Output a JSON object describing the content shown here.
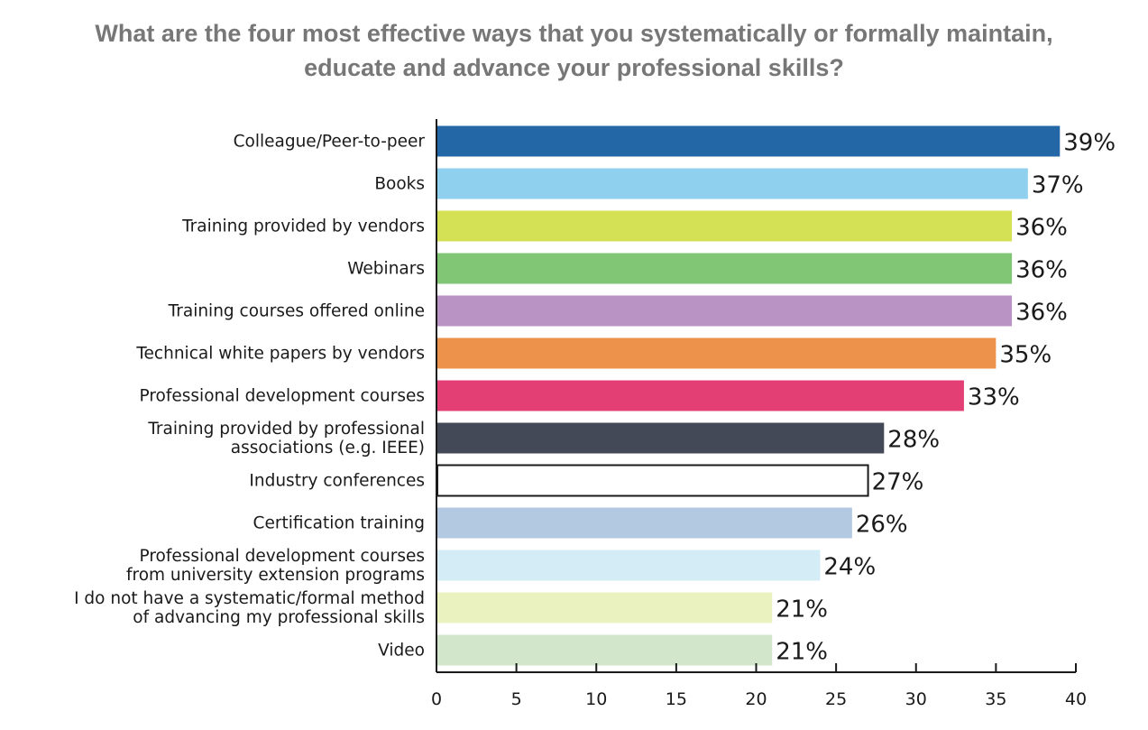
{
  "chart_data": {
    "type": "bar",
    "orientation": "horizontal",
    "title_lines": [
      "What are the four most effective ways that you systematically or formally maintain,",
      "educate and advance your professional skills?"
    ],
    "xlim": [
      0,
      40
    ],
    "xticks": [
      0,
      5,
      10,
      15,
      20,
      25,
      30,
      35,
      40
    ],
    "grid": false,
    "value_suffix": "%",
    "bars": [
      {
        "label": [
          "Colleague/Peer-to-peer"
        ],
        "value": 39,
        "color": "#2467a6",
        "outline": false
      },
      {
        "label": [
          "Books"
        ],
        "value": 37,
        "color": "#8ed0ee",
        "outline": false
      },
      {
        "label": [
          "Training provided by vendors"
        ],
        "value": 36,
        "color": "#d5e155",
        "outline": false
      },
      {
        "label": [
          "Webinars"
        ],
        "value": 36,
        "color": "#81c675",
        "outline": false
      },
      {
        "label": [
          "Training courses offered online"
        ],
        "value": 36,
        "color": "#b993c3",
        "outline": false
      },
      {
        "label": [
          "Technical white papers by vendors"
        ],
        "value": 35,
        "color": "#ec924a",
        "outline": false
      },
      {
        "label": [
          "Professional development courses"
        ],
        "value": 33,
        "color": "#e33f74",
        "outline": false
      },
      {
        "label": [
          "Training provided by professional",
          "associations (e.g. IEEE)"
        ],
        "value": 28,
        "color": "#444957",
        "outline": false
      },
      {
        "label": [
          "Industry conferences"
        ],
        "value": 27,
        "color": "#ffffff",
        "outline": true
      },
      {
        "label": [
          "Certification training"
        ],
        "value": 26,
        "color": "#b3c9e2",
        "outline": false
      },
      {
        "label": [
          "Professional development courses",
          "from university extension programs"
        ],
        "value": 24,
        "color": "#d3ecf6",
        "outline": false
      },
      {
        "label": [
          "I do not have a systematic/formal method",
          "of advancing my professional skills"
        ],
        "value": 21,
        "color": "#eaf3bf",
        "outline": false
      },
      {
        "label": [
          "Video"
        ],
        "value": 21,
        "color": "#d1e6cb",
        "outline": false
      }
    ]
  }
}
